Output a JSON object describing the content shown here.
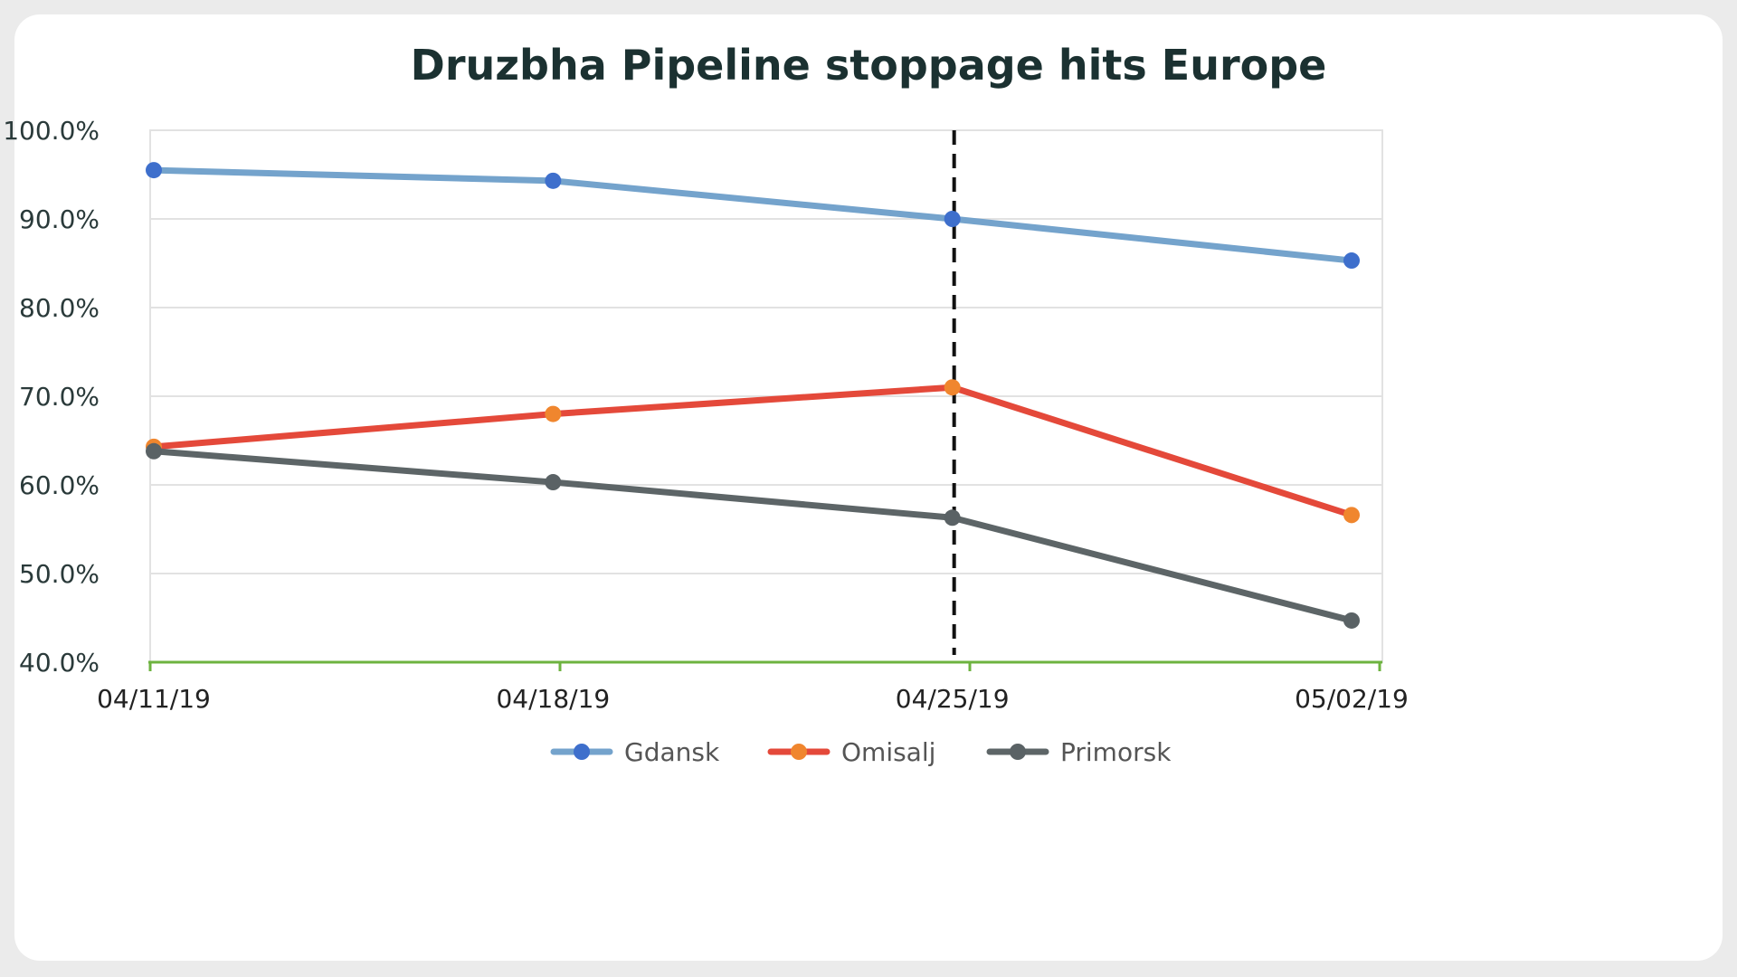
{
  "chart_data": {
    "type": "line",
    "title": "Druzbha Pipeline stoppage hits Europe",
    "xlabel": "",
    "ylabel": "",
    "categories": [
      "04/11/19",
      "04/18/19",
      "04/25/19",
      "05/02/19"
    ],
    "ylim": [
      40.0,
      100.0
    ],
    "yticks": [
      "100.0%",
      "90.0%",
      "80.0%",
      "70.0%",
      "60.0%",
      "50.0%",
      "40.0%"
    ],
    "ytick_values": [
      100,
      90,
      80,
      70,
      60,
      50,
      40
    ],
    "grid": true,
    "legend_position": "bottom",
    "reference_line": {
      "x": "04/25/19",
      "style": "dashed",
      "color": "#111111"
    },
    "series": [
      {
        "name": "Gdansk",
        "values": [
          95.5,
          94.3,
          90.0,
          85.3
        ],
        "line_color": "#74a3cc",
        "marker_color": "#3e6fcc"
      },
      {
        "name": "Omisalj",
        "values": [
          64.3,
          68.0,
          71.0,
          56.6
        ],
        "line_color": "#e4493a",
        "marker_color": "#f0862e"
      },
      {
        "name": "Primorsk",
        "values": [
          63.8,
          60.3,
          56.3,
          44.7
        ],
        "line_color": "#5d6567",
        "marker_color": "#5a6265"
      }
    ]
  }
}
